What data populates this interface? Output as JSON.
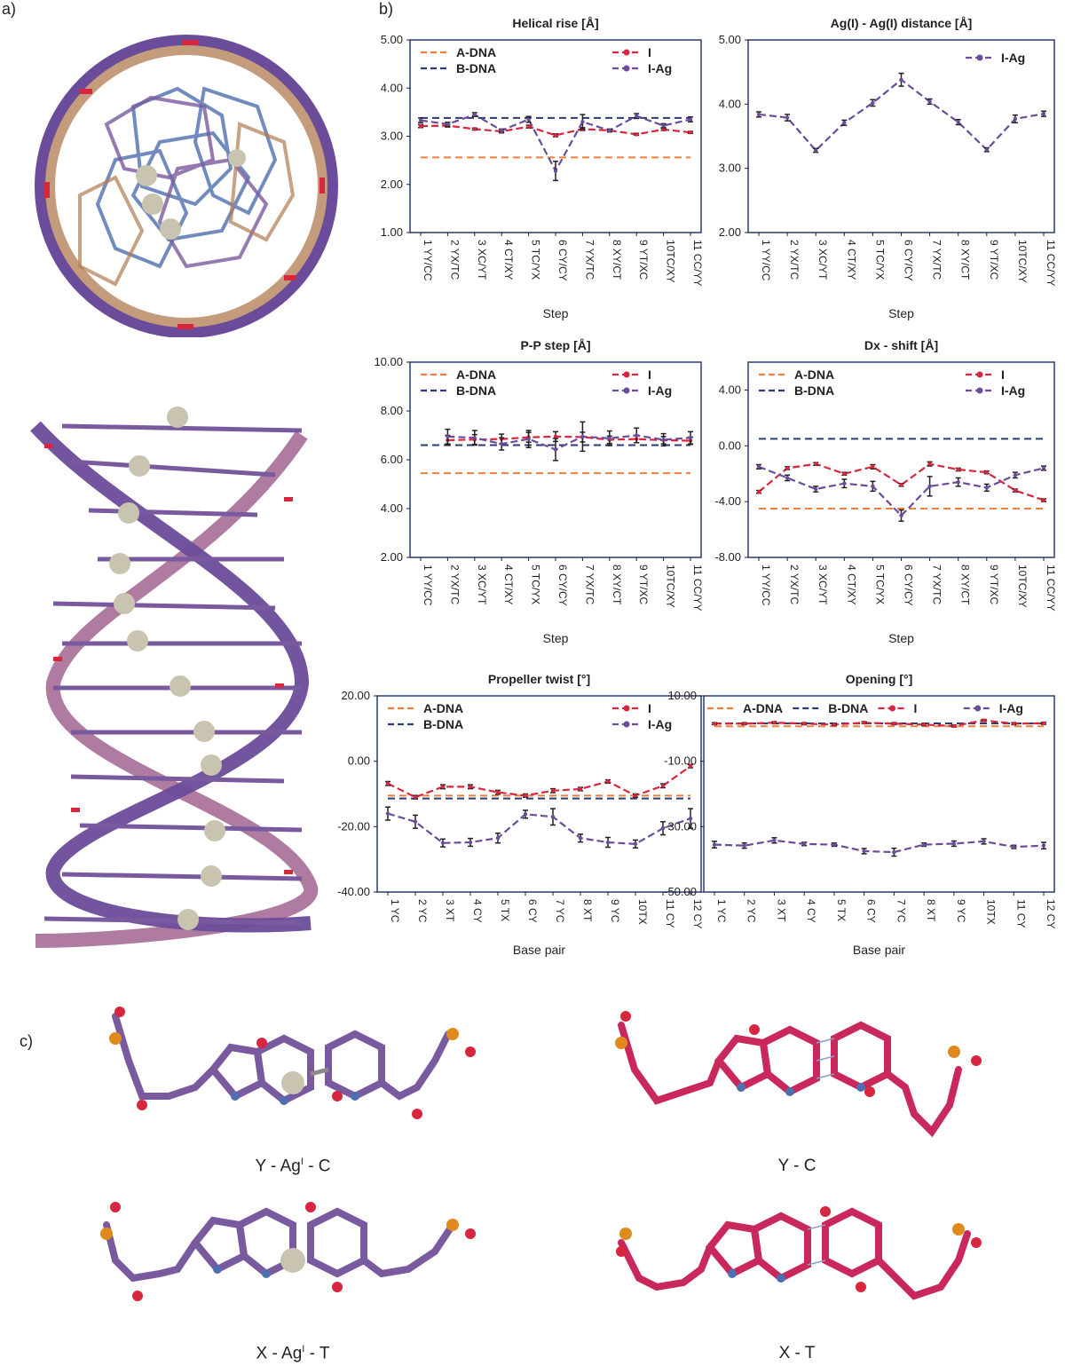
{
  "panel_labels": {
    "a": "a)",
    "b": "b)",
    "c": "c)"
  },
  "legend_labels": {
    "adna": "A-DNA",
    "bdna": "B-DNA",
    "i": "I",
    "iag": "I-Ag"
  },
  "colors": {
    "adna": "#f07f3c",
    "bdna": "#2a3b74",
    "i": "#d7263d",
    "iag": "#6b4c9a",
    "frame": "#2a3b74",
    "helix": "#6b4c9a",
    "helix2": "#b07ba0",
    "silver": "#c9c4b0",
    "oxygen": "#d7263d",
    "nitrogen": "#4f6fb0",
    "phosphorus": "#e08a1e",
    "carbon_purple": "#7a5a9e",
    "carbon_red": "#c8285a",
    "hydrogen": "#f0ead0"
  },
  "step_ticks": [
    "1 YY/CC",
    "2 YX/TC",
    "3 XC/YT",
    "4 CT/XY",
    "5 TC/YX",
    "6 CY/CY",
    "7 YX/TC",
    "8 XY/CT",
    "9 YT/XC",
    "10TC/XY",
    "11 CC/YY"
  ],
  "bp_ticks": [
    "1 YC",
    "2 YC",
    "3 XT",
    "4 CY",
    "5 TX",
    "6 CY",
    "7 YC",
    "8 XT",
    "9 YC",
    "10TX",
    "11 CY",
    "12 CY"
  ],
  "chart_data": [
    {
      "type": "line",
      "title": "Helical rise [Å]",
      "xlabel": "Step",
      "ylim": [
        1.0,
        5.0
      ],
      "yticks": [
        "1.00",
        "2.00",
        "3.00",
        "4.00",
        "5.00"
      ],
      "references": [
        {
          "name": "A-DNA",
          "value": 2.56
        },
        {
          "name": "B-DNA",
          "value": 3.38
        }
      ],
      "series": [
        {
          "name": "I",
          "values": [
            3.21,
            3.22,
            3.15,
            3.1,
            3.2,
            3.02,
            3.15,
            3.12,
            3.04,
            3.14,
            3.08
          ],
          "errors": [
            0.03,
            0.03,
            0.02,
            0.03,
            0.03,
            0.03,
            0.03,
            0.02,
            0.02,
            0.02,
            0.02
          ]
        },
        {
          "name": "I-Ag",
          "values": [
            3.33,
            3.25,
            3.45,
            3.12,
            3.35,
            2.28,
            3.3,
            3.12,
            3.42,
            3.22,
            3.35
          ],
          "errors": [
            0.05,
            0.04,
            0.04,
            0.03,
            0.06,
            0.2,
            0.15,
            0.03,
            0.05,
            0.04,
            0.05
          ]
        }
      ]
    },
    {
      "type": "line",
      "title": "Ag(I) - Ag(I) distance [Å]",
      "xlabel": "Step",
      "ylim": [
        2.0,
        5.0
      ],
      "yticks": [
        "2.00",
        "3.00",
        "4.00",
        "5.00"
      ],
      "references": [],
      "series": [
        {
          "name": "I-Ag",
          "values": [
            3.84,
            3.79,
            3.28,
            3.71,
            4.02,
            4.38,
            4.04,
            3.72,
            3.29,
            3.77,
            3.85
          ],
          "errors": [
            0.04,
            0.05,
            0.03,
            0.04,
            0.05,
            0.1,
            0.04,
            0.04,
            0.03,
            0.06,
            0.04
          ]
        }
      ]
    },
    {
      "type": "line",
      "title": "P-P step [Å]",
      "xlabel": "Step",
      "ylim": [
        2.0,
        10.0
      ],
      "yticks": [
        "2.00",
        "4.00",
        "6.00",
        "8.00",
        "10.00"
      ],
      "references": [
        {
          "name": "A-DNA",
          "value": 5.45
        },
        {
          "name": "B-DNA",
          "value": 6.6
        }
      ],
      "series": [
        {
          "name": "I",
          "values": [
            null,
            6.8,
            6.83,
            6.85,
            6.92,
            6.95,
            6.93,
            6.82,
            6.85,
            6.8,
            6.78
          ],
          "errors": [
            null,
            0.2,
            0.2,
            0.2,
            0.2,
            0.2,
            0.2,
            0.15,
            0.15,
            0.15,
            0.15
          ]
        },
        {
          "name": "I-Ag",
          "values": [
            null,
            6.95,
            6.9,
            6.65,
            6.85,
            6.42,
            6.95,
            6.88,
            7.0,
            6.82,
            6.9
          ],
          "errors": [
            null,
            0.3,
            0.3,
            0.25,
            0.35,
            0.45,
            0.6,
            0.3,
            0.3,
            0.25,
            0.25
          ]
        }
      ]
    },
    {
      "type": "line",
      "title": "Dx - shift [Å]",
      "xlabel": "Step",
      "ylim": [
        -8.0,
        6.0
      ],
      "yticks": [
        "-8.00",
        "-4.00",
        "0.00",
        "4.00"
      ],
      "references": [
        {
          "name": "A-DNA",
          "value": -4.5
        },
        {
          "name": "B-DNA",
          "value": 0.5
        }
      ],
      "series": [
        {
          "name": "I",
          "values": [
            -3.3,
            -1.6,
            -1.3,
            -2.0,
            -1.5,
            -2.8,
            -1.3,
            -1.7,
            -1.9,
            -3.2,
            -3.9
          ],
          "errors": [
            0.1,
            0.1,
            0.1,
            0.1,
            0.15,
            0.1,
            0.15,
            0.1,
            0.1,
            0.1,
            0.1
          ]
        },
        {
          "name": "I-Ag",
          "values": [
            -1.5,
            -2.3,
            -3.1,
            -2.7,
            -2.9,
            -5.0,
            -2.9,
            -2.6,
            -3.0,
            -2.1,
            -1.6
          ],
          "errors": [
            0.15,
            0.2,
            0.2,
            0.3,
            0.35,
            0.4,
            0.7,
            0.3,
            0.25,
            0.2,
            0.15
          ]
        }
      ]
    },
    {
      "type": "line",
      "title": "Propeller twist [°]",
      "xlabel": "Base pair",
      "ylim": [
        -40.0,
        20.0
      ],
      "yticks": [
        "-40.00",
        "-20.00",
        "0.00",
        "20.00"
      ],
      "references": [
        {
          "name": "A-DNA",
          "value": -10.5
        },
        {
          "name": "B-DNA",
          "value": -11.4
        }
      ],
      "series": [
        {
          "name": "I",
          "values": [
            -6.8,
            -11.0,
            -7.8,
            -7.8,
            -9.5,
            -10.5,
            -9.0,
            -8.5,
            -6.2,
            -10.5,
            -7.5,
            -1.5
          ],
          "errors": [
            0.6,
            0.5,
            0.6,
            0.6,
            0.6,
            0.5,
            0.6,
            0.5,
            0.5,
            0.5,
            0.6,
            0.5
          ]
        },
        {
          "name": "I-Ag",
          "values": [
            -16.0,
            -18.5,
            -25.0,
            -24.8,
            -23.5,
            -16.2,
            -17.0,
            -23.5,
            -24.8,
            -25.3,
            -20.5,
            -17.5
          ],
          "errors": [
            2.0,
            2.0,
            1.2,
            1.2,
            1.5,
            1.2,
            2.5,
            1.2,
            1.5,
            1.2,
            2.0,
            3.0
          ]
        }
      ]
    },
    {
      "type": "line",
      "title": "Opening [°]",
      "xlabel": "Base pair",
      "ylim": [
        -50.0,
        10.0
      ],
      "yticks": [
        "-50.00",
        "-30.00",
        "-10.00",
        "10.00"
      ],
      "references": [
        {
          "name": "A-DNA",
          "value": 0.7
        },
        {
          "name": "B-DNA",
          "value": 1.6
        }
      ],
      "series": [
        {
          "name": "I",
          "values": [
            1.5,
            1.5,
            1.8,
            1.5,
            1.2,
            1.8,
            1.5,
            1.2,
            0.8,
            2.5,
            1.5,
            1.6
          ],
          "errors": [
            0.3,
            0.3,
            0.3,
            0.3,
            0.3,
            0.3,
            0.3,
            0.3,
            0.3,
            0.3,
            0.3,
            0.3
          ]
        },
        {
          "name": "I-Ag",
          "values": [
            -35.5,
            -35.8,
            -34.2,
            -35.3,
            -35.5,
            -37.5,
            -37.8,
            -35.5,
            -35.2,
            -34.5,
            -36.2,
            -35.8
          ],
          "errors": [
            1.0,
            0.8,
            0.8,
            0.5,
            0.5,
            0.8,
            1.2,
            0.5,
            0.8,
            0.8,
            0.5,
            1.0
          ]
        }
      ]
    }
  ],
  "captions": {
    "yagc": {
      "pre": "Y - Ag",
      "sup": "I",
      "post": " - C"
    },
    "yc": {
      "pre": "Y - C"
    },
    "xagt": {
      "pre": "X - Ag",
      "sup": "I",
      "post": " - T"
    },
    "xt": {
      "pre": "X - T"
    }
  }
}
